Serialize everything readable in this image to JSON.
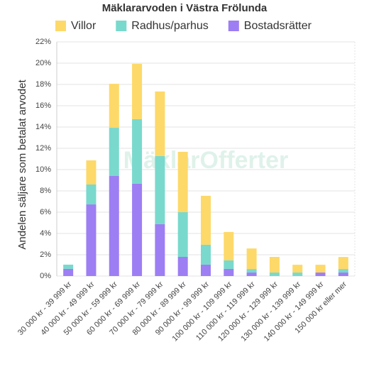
{
  "chart_data": {
    "type": "stacked_bar",
    "title": "Mäklararvoden i Västra Frölunda",
    "ylabel": "Andelen säljare som betalat arvodet",
    "watermark": "MäklarOfferter",
    "categories": [
      "30 000 kr - 39 999 kr",
      "40 000 kr - 49 999 kr",
      "50 000 kr - 59 999 kr",
      "60 000 kr - 69 999 kr",
      "70 000 kr - 79 999 kr",
      "80 000 kr - 89 999 kr",
      "90 000 kr - 99 999 kr",
      "100 000 kr - 109 999 kr",
      "110 000 kr - 119 999 kr",
      "120 000 kr - 129 999 kr",
      "130 000 kr - 139 999 kr",
      "140 000 kr - 149 999 kr",
      "150 000 kr eller mer"
    ],
    "series": [
      {
        "name": "Villor",
        "color": "#fdd969",
        "values": [
          0,
          2.27,
          4.13,
          5.2,
          6.07,
          5.67,
          4.6,
          2.67,
          1.93,
          1.47,
          0.73,
          0.73,
          1.13
        ]
      },
      {
        "name": "Radhus/parhus",
        "color": "#79d9cd",
        "values": [
          0.4,
          1.87,
          4.53,
          6.07,
          6.4,
          4.2,
          1.87,
          0.8,
          0.33,
          0.33,
          0.33,
          0,
          0.33
        ]
      },
      {
        "name": "Bostadsrätter",
        "color": "#9d7ef3",
        "values": [
          0.67,
          6.73,
          9.4,
          8.67,
          4.87,
          1.8,
          1.07,
          0.67,
          0.33,
          0,
          0,
          0.33,
          0.33
        ]
      }
    ],
    "ylim": [
      0,
      22
    ],
    "yticks": [
      {
        "value": 0,
        "label": "0%"
      },
      {
        "value": 2,
        "label": "2%"
      },
      {
        "value": 4,
        "label": "4%"
      },
      {
        "value": 6,
        "label": "6%"
      },
      {
        "value": 8,
        "label": "8%"
      },
      {
        "value": 10,
        "label": "10%"
      },
      {
        "value": 12,
        "label": "12%"
      },
      {
        "value": 14,
        "label": "14%"
      },
      {
        "value": 16,
        "label": "16%"
      },
      {
        "value": 18,
        "label": "18%"
      },
      {
        "value": 20,
        "label": "20%"
      },
      {
        "value": 22,
        "label": "22%"
      }
    ],
    "grid": true
  }
}
